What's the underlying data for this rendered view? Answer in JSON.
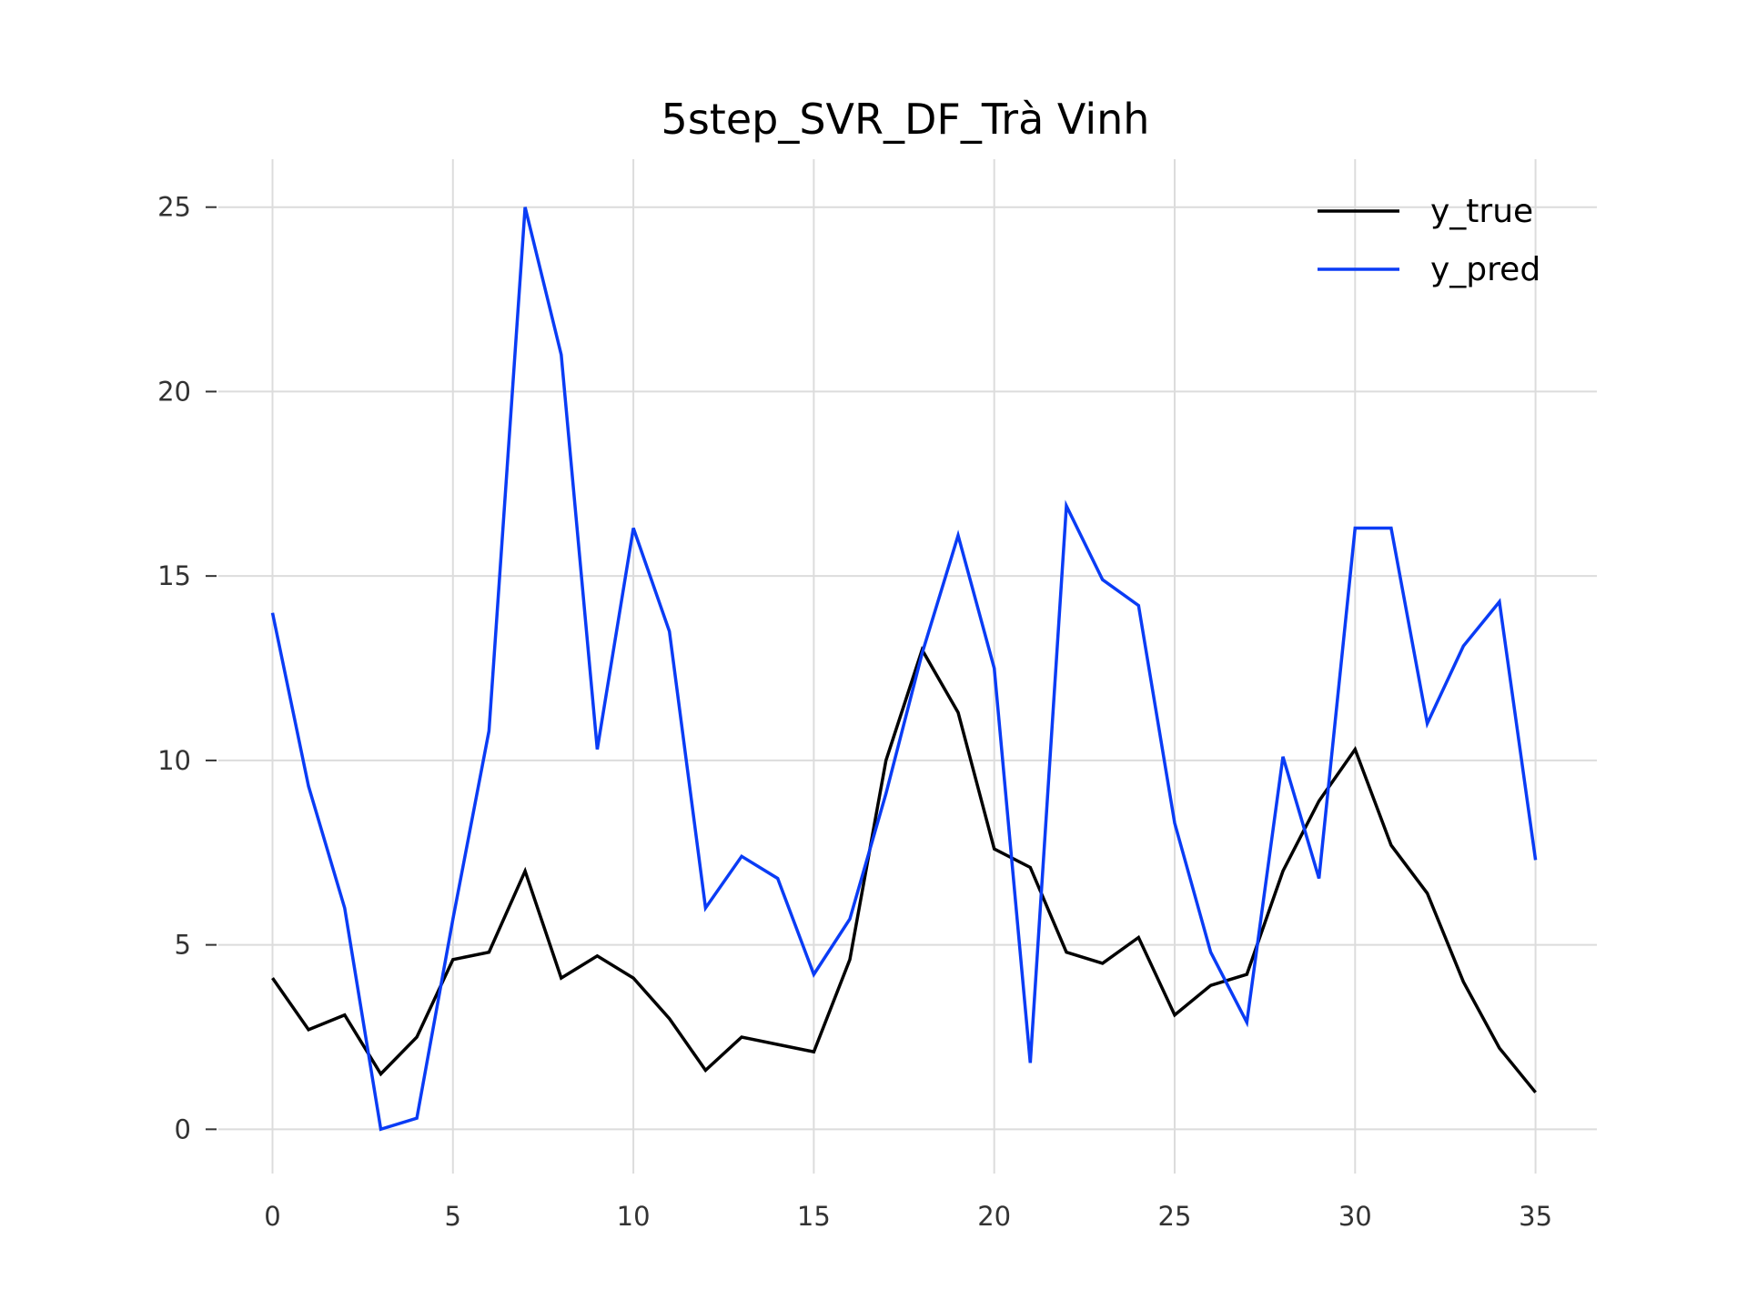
{
  "chart_data": {
    "type": "line",
    "title": "5step_SVR_DF_Trà Vinh",
    "xlabel": "",
    "ylabel": "",
    "xlim": [
      -1.5,
      36.7
    ],
    "ylim": [
      -1.2,
      26.3
    ],
    "xticks": [
      0,
      5,
      10,
      15,
      20,
      25,
      30,
      35
    ],
    "yticks": [
      0,
      5,
      10,
      15,
      20,
      25
    ],
    "grid": true,
    "legend_position": "top-right",
    "x": [
      0,
      1,
      2,
      3,
      4,
      5,
      6,
      7,
      8,
      9,
      10,
      11,
      12,
      13,
      14,
      15,
      16,
      17,
      18,
      19,
      20,
      21,
      22,
      23,
      24,
      25,
      26,
      27,
      28,
      29,
      30,
      31,
      32,
      33,
      34,
      35
    ],
    "series": [
      {
        "name": "y_true",
        "color": "#000000",
        "values": [
          4.1,
          2.7,
          3.1,
          1.5,
          2.5,
          4.6,
          4.8,
          7.0,
          4.1,
          4.7,
          4.1,
          3.0,
          1.6,
          2.5,
          2.3,
          2.1,
          4.6,
          10.0,
          13.0,
          11.3,
          7.6,
          7.1,
          4.8,
          4.5,
          5.2,
          3.1,
          3.9,
          4.2,
          7.0,
          8.9,
          10.3,
          7.7,
          6.4,
          4.0,
          2.2,
          1.0
        ]
      },
      {
        "name": "y_pred",
        "color": "#0a3cf5",
        "values": [
          14.0,
          9.3,
          6.0,
          0.0,
          0.3,
          5.7,
          10.8,
          25.0,
          21.0,
          10.3,
          16.3,
          13.5,
          6.0,
          7.4,
          6.8,
          4.2,
          5.7,
          9.1,
          12.9,
          16.1,
          12.5,
          1.8,
          16.9,
          14.9,
          14.2,
          8.3,
          4.8,
          2.9,
          10.1,
          6.8,
          16.3,
          16.3,
          11.0,
          13.1,
          14.3,
          7.3
        ]
      }
    ]
  }
}
